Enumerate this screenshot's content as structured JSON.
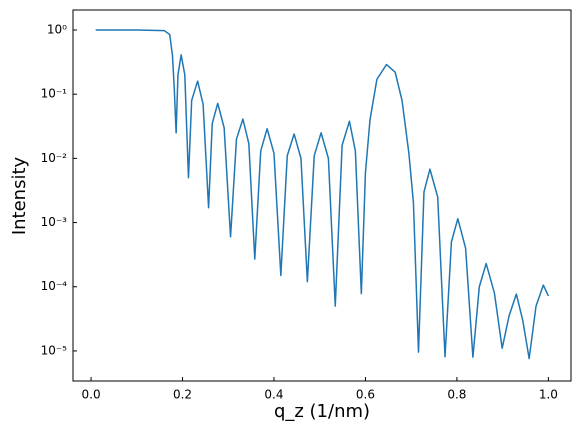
{
  "chart_data": {
    "type": "line",
    "xlabel": "q_z (1/nm)",
    "ylabel": "Intensity",
    "yscale": "log",
    "color": "#1f77b4",
    "x": [
      0.01,
      0.1,
      0.16,
      0.172,
      0.178,
      0.182,
      0.186,
      0.19,
      0.197,
      0.205,
      0.213,
      0.22,
      0.233,
      0.245,
      0.257,
      0.265,
      0.277,
      0.291,
      0.305,
      0.318,
      0.332,
      0.345,
      0.358,
      0.371,
      0.385,
      0.4,
      0.415,
      0.429,
      0.444,
      0.459,
      0.473,
      0.488,
      0.503,
      0.519,
      0.534,
      0.549,
      0.565,
      0.578,
      0.591,
      0.6,
      0.61,
      0.625,
      0.646,
      0.665,
      0.68,
      0.695,
      0.705,
      0.716,
      0.728,
      0.741,
      0.758,
      0.774,
      0.788,
      0.802,
      0.819,
      0.835,
      0.849,
      0.864,
      0.882,
      0.899,
      0.914,
      0.93,
      0.944,
      0.958,
      0.973,
      0.989,
      1.0
    ],
    "values": [
      1.0,
      1.0,
      0.98,
      0.85,
      0.4,
      0.12,
      0.025,
      0.2,
      0.41,
      0.2,
      0.005,
      0.08,
      0.16,
      0.07,
      0.0017,
      0.035,
      0.072,
      0.03,
      0.0006,
      0.02,
      0.041,
      0.017,
      0.00027,
      0.013,
      0.029,
      0.012,
      0.00015,
      0.011,
      0.024,
      0.01,
      0.00012,
      0.011,
      0.025,
      0.01,
      5e-05,
      0.016,
      0.038,
      0.013,
      7.8e-05,
      0.006,
      0.04,
      0.17,
      0.29,
      0.22,
      0.08,
      0.012,
      0.002,
      9.6e-06,
      0.003,
      0.0068,
      0.0025,
      8.1e-06,
      0.0005,
      0.00115,
      0.0004,
      8e-06,
      0.0001,
      0.00023,
      8e-05,
      1.1e-05,
      3.5e-05,
      7.7e-05,
      3e-05,
      7.6e-06,
      5e-05,
      0.000106,
      7.2e-05
    ],
    "xlim": [
      -0.0395,
      1.0495
    ],
    "xticks": [
      {
        "value": 0,
        "label": "0.0"
      },
      0.2,
      0.4,
      0.6,
      0.8,
      {
        "value": 1,
        "label": "1.0"
      }
    ],
    "ylim": [
      3.4e-06,
      2.05
    ],
    "yticks": [
      {
        "value": 1e-05,
        "label": "10⁻⁵"
      },
      {
        "value": 0.0001,
        "label": "10⁻⁴"
      },
      {
        "value": 0.001,
        "label": "10⁻³"
      },
      {
        "value": 0.01,
        "label": "10⁻²"
      },
      {
        "value": 0.1,
        "label": "10⁻¹"
      },
      {
        "value": 1,
        "label": "10⁰"
      }
    ]
  }
}
